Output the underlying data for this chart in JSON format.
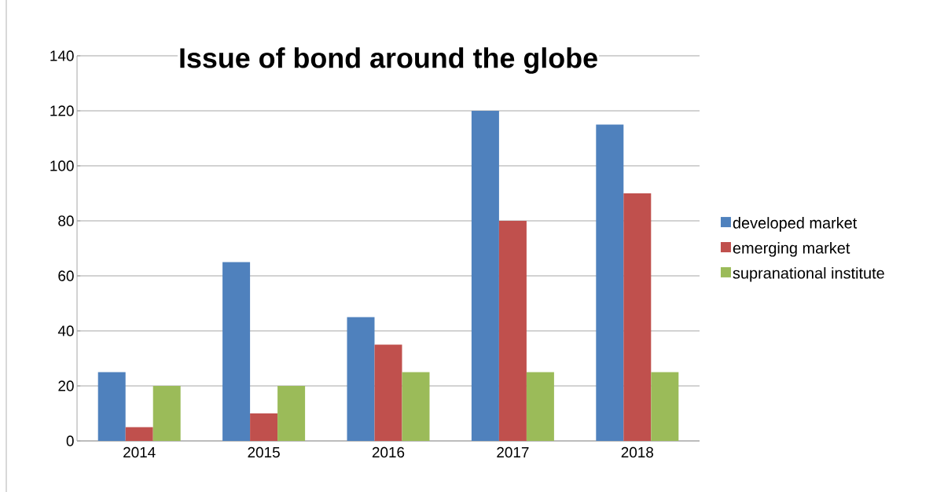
{
  "chart_data": {
    "type": "bar",
    "title": "Issue of bond around the globe",
    "categories": [
      "2014",
      "2015",
      "2016",
      "2017",
      "2018"
    ],
    "series": [
      {
        "name": "developed market",
        "color": "#4f81bd",
        "values": [
          25,
          65,
          45,
          120,
          115
        ]
      },
      {
        "name": "emerging market",
        "color": "#c0504d",
        "values": [
          5,
          10,
          35,
          80,
          90
        ]
      },
      {
        "name": "supranational institute",
        "color": "#9bbb59",
        "values": [
          20,
          20,
          25,
          25,
          25
        ]
      }
    ],
    "ylim": [
      0,
      140
    ],
    "yticks": [
      0,
      20,
      40,
      60,
      80,
      100,
      120,
      140
    ],
    "grid": "y",
    "legend": "right"
  }
}
